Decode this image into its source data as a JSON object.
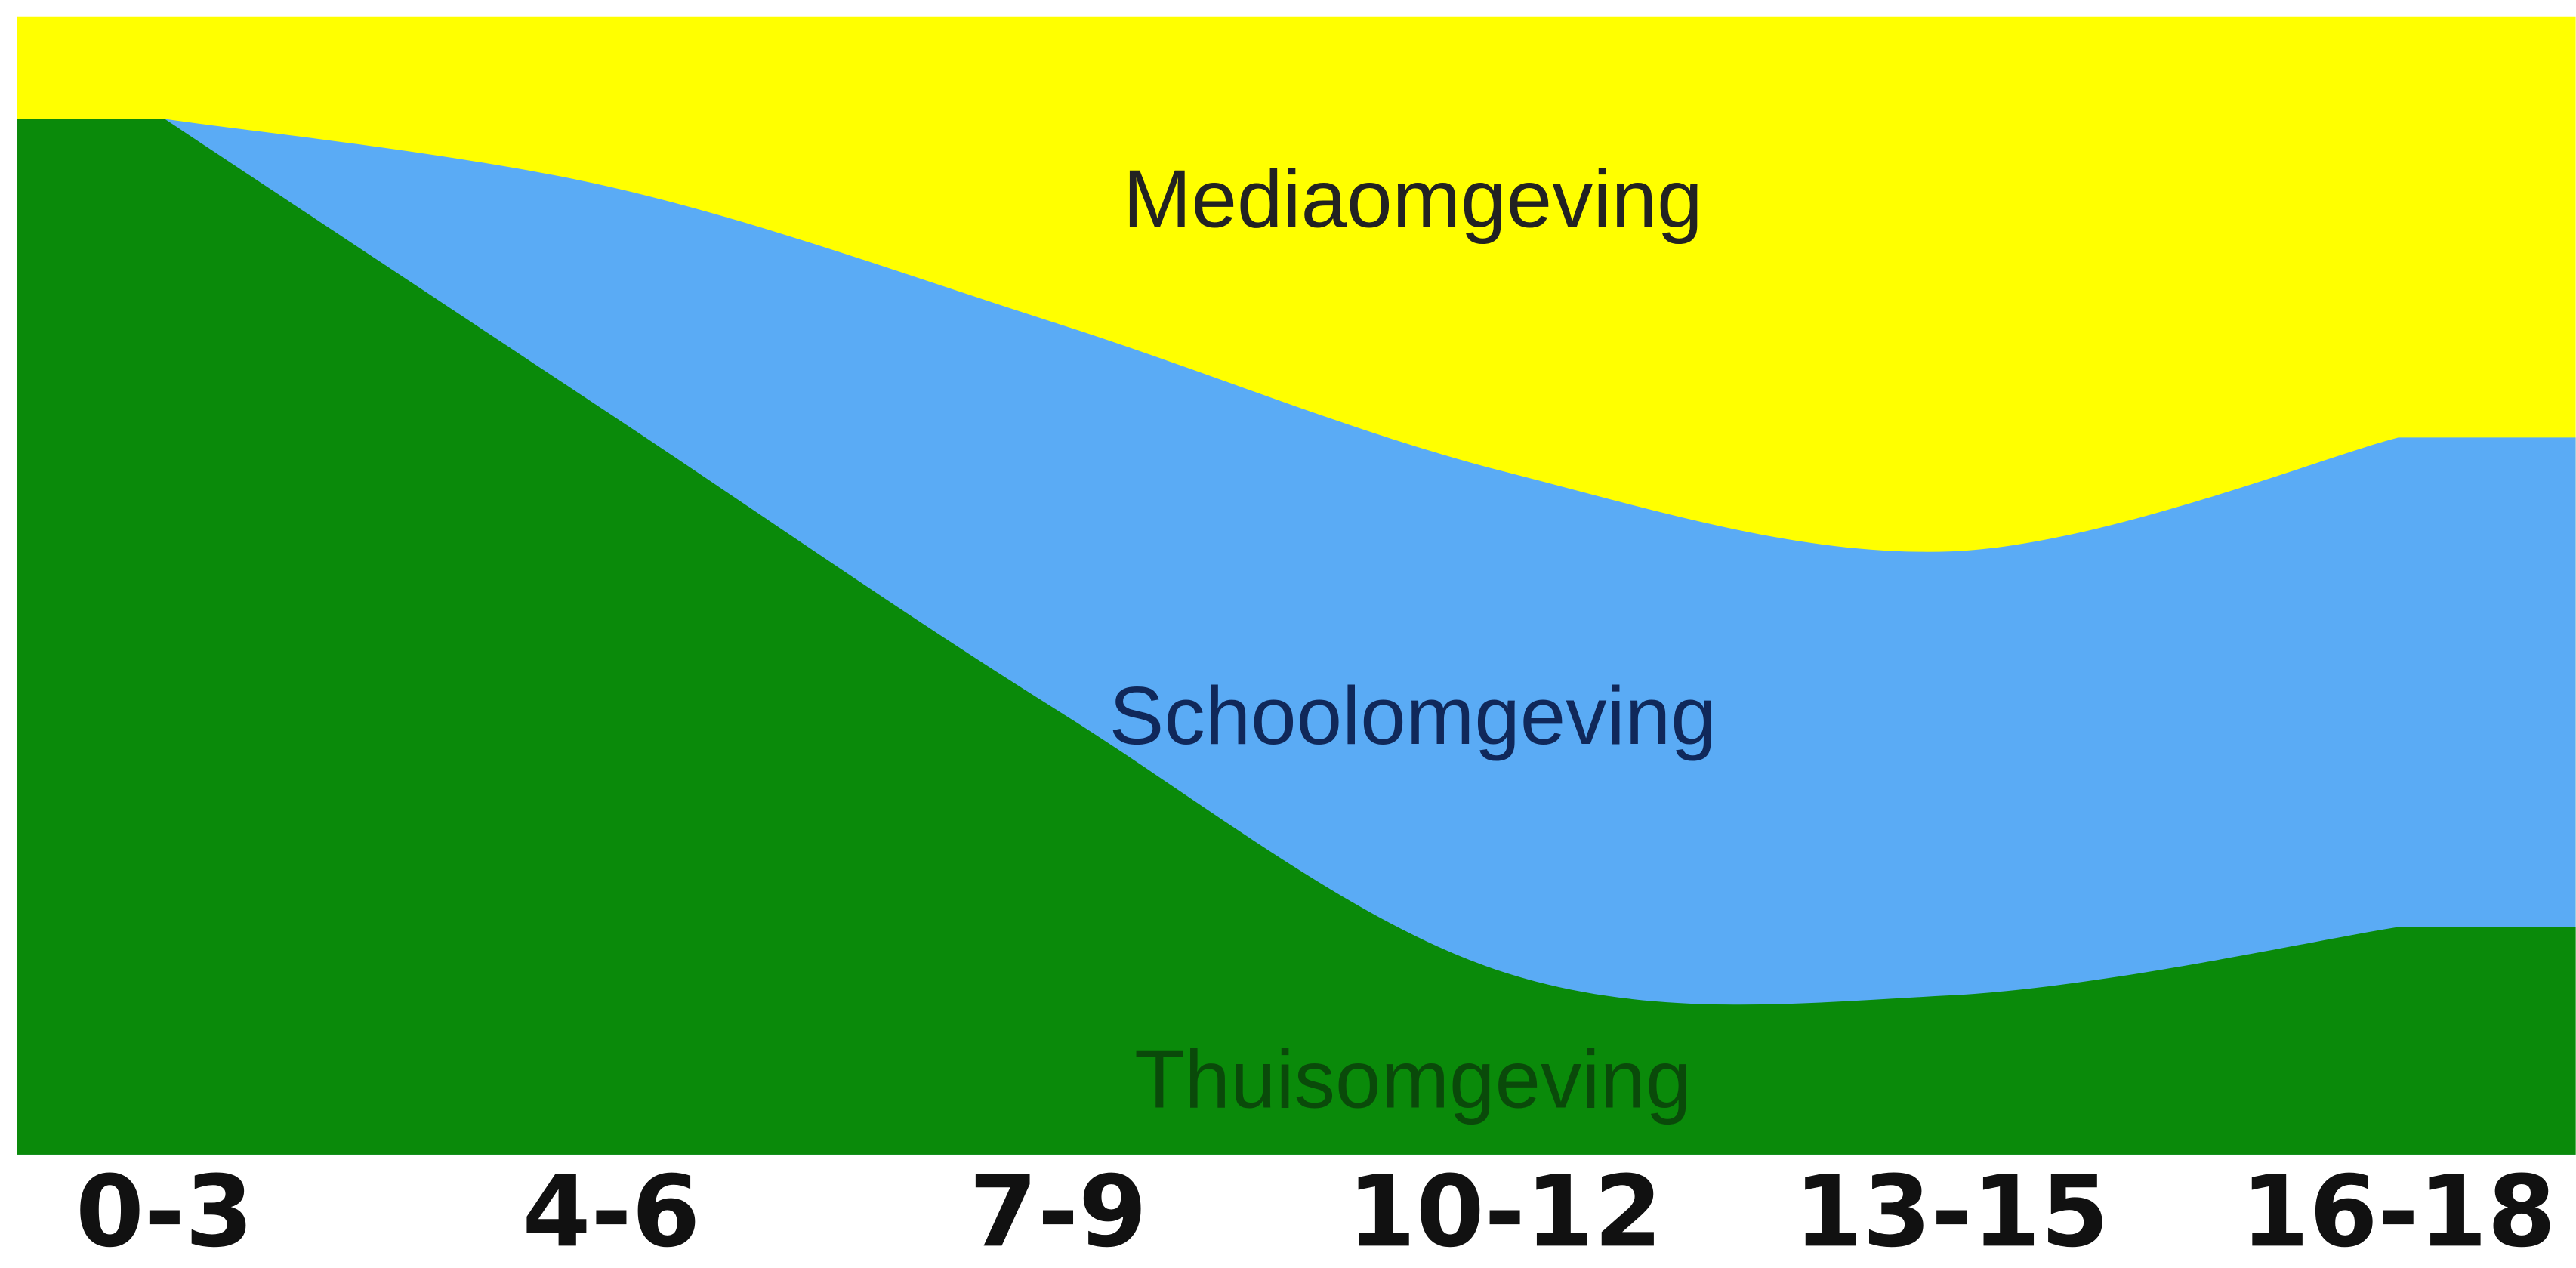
{
  "chart_data": {
    "type": "area",
    "categories": [
      "0-3",
      "4-6",
      "7-9",
      "10-12",
      "13-15",
      "16-18"
    ],
    "series": [
      {
        "name": "Thuisomgeving",
        "color": "#0a8a0a",
        "label_color": "#0a4a0a",
        "values": [
          91,
          65,
          39,
          16,
          14,
          20
        ]
      },
      {
        "name": "Schoolomgeving",
        "color": "#5aabf5",
        "label_color": "#10285a",
        "values": [
          0,
          20,
          34,
          44,
          39,
          43
        ]
      },
      {
        "name": "Mediaomgeving",
        "color": "#ffff00",
        "label_color": "#222222",
        "values": [
          9,
          15,
          27,
          40,
          47,
          37
        ]
      }
    ]
  }
}
